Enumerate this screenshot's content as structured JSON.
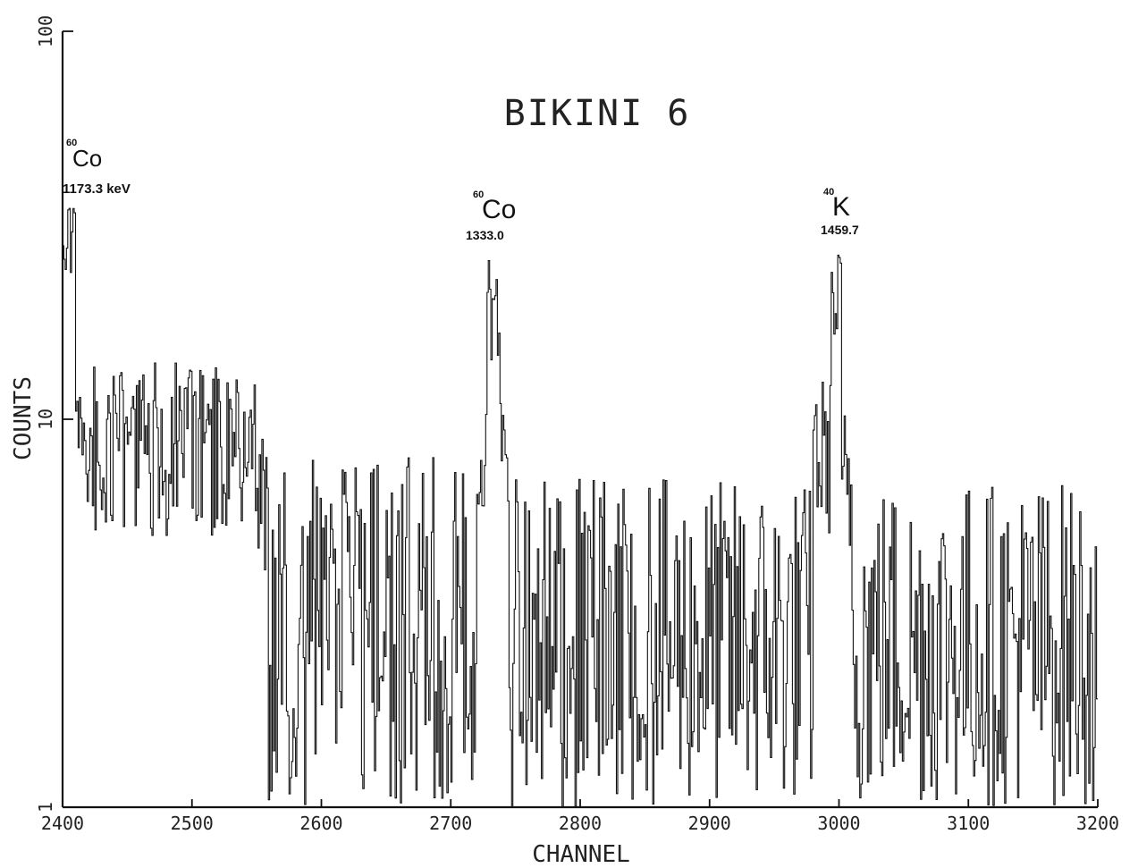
{
  "chart_data": {
    "type": "line",
    "title": "BIKINI 6",
    "xlabel": "CHANNEL",
    "ylabel": "COUNTS",
    "xlim": [
      2400,
      3200
    ],
    "ylim": [
      1,
      100
    ],
    "yscale": "log",
    "grid": false,
    "x_ticks": [
      2400,
      2500,
      2600,
      2700,
      2800,
      2900,
      3000,
      3100,
      3200
    ],
    "x_tick_labels": [
      "2400",
      "2500",
      "2600",
      "2700",
      "2800",
      "2900",
      "3000",
      "3100",
      "3200"
    ],
    "y_ticks": [
      1,
      10,
      100
    ],
    "y_tick_labels": [
      "1",
      "10",
      "100"
    ],
    "line_color": "#111111",
    "annotations": [
      {
        "isotope": "Co",
        "mass": "60",
        "energy": "1173.3 keV",
        "channel": 2406
      },
      {
        "isotope": "Co",
        "mass": "60",
        "energy": "1333.0",
        "channel": 2733
      },
      {
        "isotope": "K",
        "mass": "40",
        "energy": "1459.7",
        "channel": 3000
      }
    ],
    "regions": [
      {
        "from": 2400,
        "to": 2402,
        "lo": 20,
        "hi": 30
      },
      {
        "from": 2402,
        "to": 2410,
        "lo": 22,
        "hi": 36
      },
      {
        "from": 2410,
        "to": 2415,
        "lo": 8,
        "hi": 15
      },
      {
        "from": 2415,
        "to": 2550,
        "lo": 5,
        "hi": 14
      },
      {
        "from": 2550,
        "to": 2558,
        "lo": 4,
        "hi": 9
      },
      {
        "from": 2558,
        "to": 2600,
        "lo": 1,
        "hi": 8
      },
      {
        "from": 2600,
        "to": 2720,
        "lo": 1,
        "hi": 8
      },
      {
        "from": 2720,
        "to": 2728,
        "lo": 5,
        "hi": 12
      },
      {
        "from": 2728,
        "to": 2738,
        "lo": 14,
        "hi": 26
      },
      {
        "from": 2738,
        "to": 2745,
        "lo": 6,
        "hi": 13
      },
      {
        "from": 2745,
        "to": 2980,
        "lo": 1,
        "hi": 7
      },
      {
        "from": 2980,
        "to": 2994,
        "lo": 5,
        "hi": 13
      },
      {
        "from": 2994,
        "to": 3002,
        "lo": 14,
        "hi": 28
      },
      {
        "from": 3002,
        "to": 3010,
        "lo": 4,
        "hi": 11
      },
      {
        "from": 3010,
        "to": 3196,
        "lo": 1,
        "hi": 7
      },
      {
        "from": 3196,
        "to": 3200,
        "lo": 1,
        "hi": 5
      }
    ]
  }
}
